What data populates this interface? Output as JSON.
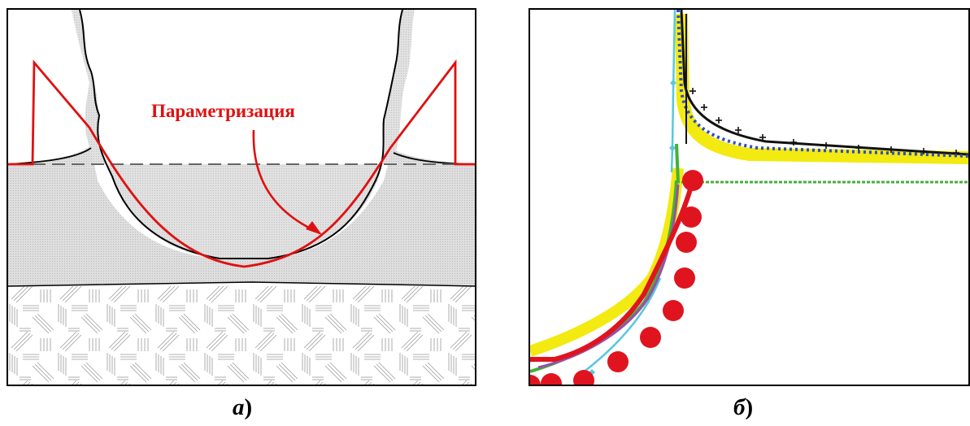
{
  "panel_a": {
    "annotation": "Параметризация",
    "colors": {
      "curve": "#e01010",
      "wall": "#d2d2d2",
      "outline": "#000000",
      "dashed_line": "#666666"
    }
  },
  "panel_b": {
    "series": [
      {
        "color": "#f2ea10",
        "marker": "thick-band"
      },
      {
        "color": "#000000",
        "marker": "plus"
      },
      {
        "color": "#2b4cc8",
        "marker": "dot"
      },
      {
        "color": "#56c8e0",
        "marker": "diamond"
      },
      {
        "color": "#44b03a",
        "marker": "dot"
      },
      {
        "color": "#9a4ea8",
        "marker": "line"
      },
      {
        "color": "#e0141e",
        "marker": "large-circle"
      }
    ]
  },
  "captions": {
    "a_letter": "а",
    "b_letter": "б",
    "paren": ")"
  }
}
